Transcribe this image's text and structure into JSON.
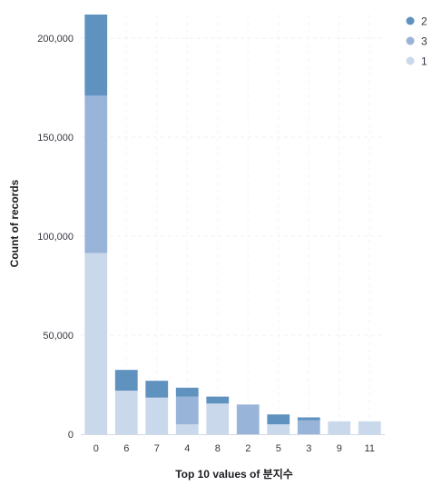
{
  "chart_data": {
    "type": "bar",
    "stacked": true,
    "categories": [
      "0",
      "6",
      "7",
      "4",
      "8",
      "2",
      "5",
      "3",
      "9",
      "11"
    ],
    "series": [
      {
        "name": "1",
        "color": "#cad8eb",
        "values": [
          91500,
          22000,
          18500,
          5000,
          15500,
          0,
          5000,
          0,
          6500,
          6500
        ]
      },
      {
        "name": "3",
        "color": "#98b4d8",
        "values": [
          79500,
          0,
          0,
          14000,
          0,
          15000,
          0,
          7000,
          0,
          0
        ]
      },
      {
        "name": "2",
        "color": "#6092c0",
        "values": [
          42000,
          10500,
          8500,
          4500,
          3500,
          0,
          5000,
          1500,
          0,
          0
        ]
      }
    ],
    "legend_order": [
      "2",
      "3",
      "1"
    ],
    "legend_position": "top-right",
    "ylim": [
      0,
      212000
    ],
    "yticks": [
      0,
      50000,
      100000,
      150000,
      200000
    ],
    "ytick_labels": [
      "0",
      "50,000",
      "100,000",
      "150,000",
      "200,000"
    ],
    "xlabel": "Top 10 values of 분지수",
    "ylabel": "Count of records",
    "grid": true
  }
}
